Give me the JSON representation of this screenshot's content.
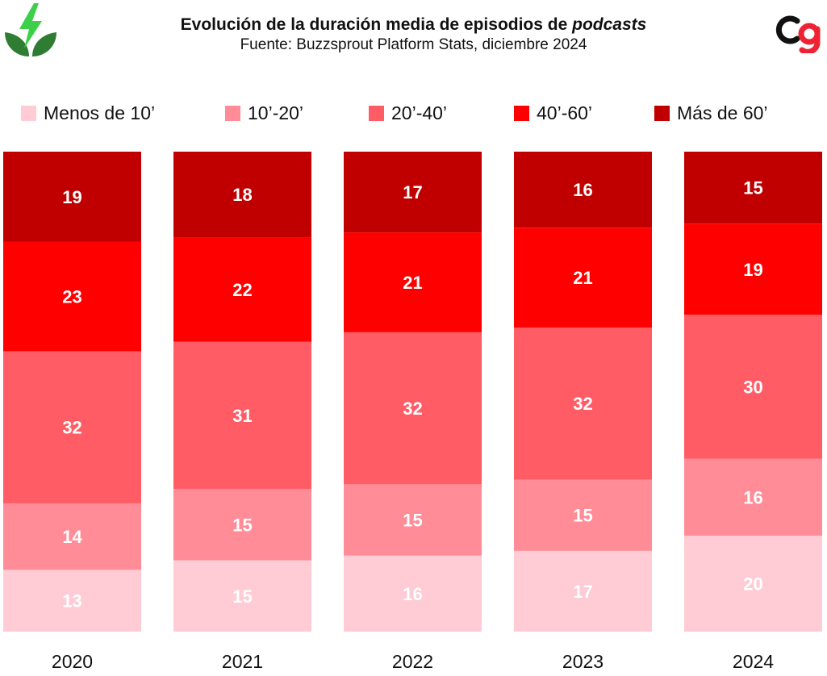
{
  "header": {
    "title_main": "Evolución de la duración media de episodios de ",
    "title_italic": "podcasts",
    "subtitle": "Fuente: Buzzsprout Platform Stats, diciembre 2024"
  },
  "logos": {
    "left": "lightning-leaf-icon",
    "right": "cg-monogram-icon"
  },
  "colors": {
    "menos10": "#ffccd5",
    "d10_20": "#ff8c96",
    "d20_40": "#ff5c66",
    "d40_60": "#ff0000",
    "mas60": "#c00000",
    "leaf_green": "#2e7d32",
    "bolt_green": "#3ecf4a",
    "monogram_red": "#ee2233",
    "monogram_black": "#111111"
  },
  "chart_data": {
    "type": "bar",
    "stacked": true,
    "normalized": true,
    "categories": [
      "2020",
      "2021",
      "2022",
      "2023",
      "2024"
    ],
    "series": [
      {
        "name": "Menos de 10’",
        "color": "#ffccd5",
        "values": [
          13,
          15,
          16,
          17,
          20
        ]
      },
      {
        "name": "10’-20’",
        "color": "#ff8c96",
        "values": [
          14,
          15,
          15,
          15,
          16
        ]
      },
      {
        "name": "20’-40’",
        "color": "#ff5c66",
        "values": [
          32,
          31,
          32,
          32,
          30
        ]
      },
      {
        "name": "40’-60’",
        "color": "#ff0000",
        "values": [
          23,
          22,
          21,
          21,
          19
        ]
      },
      {
        "name": "Más de 60’",
        "color": "#c00000",
        "values": [
          19,
          18,
          17,
          16,
          15
        ]
      }
    ],
    "title": "Evolución de la duración media de episodios de podcasts",
    "subtitle": "Fuente: Buzzsprout Platform Stats, diciembre 2024",
    "legend_position": "top",
    "grid": false
  }
}
